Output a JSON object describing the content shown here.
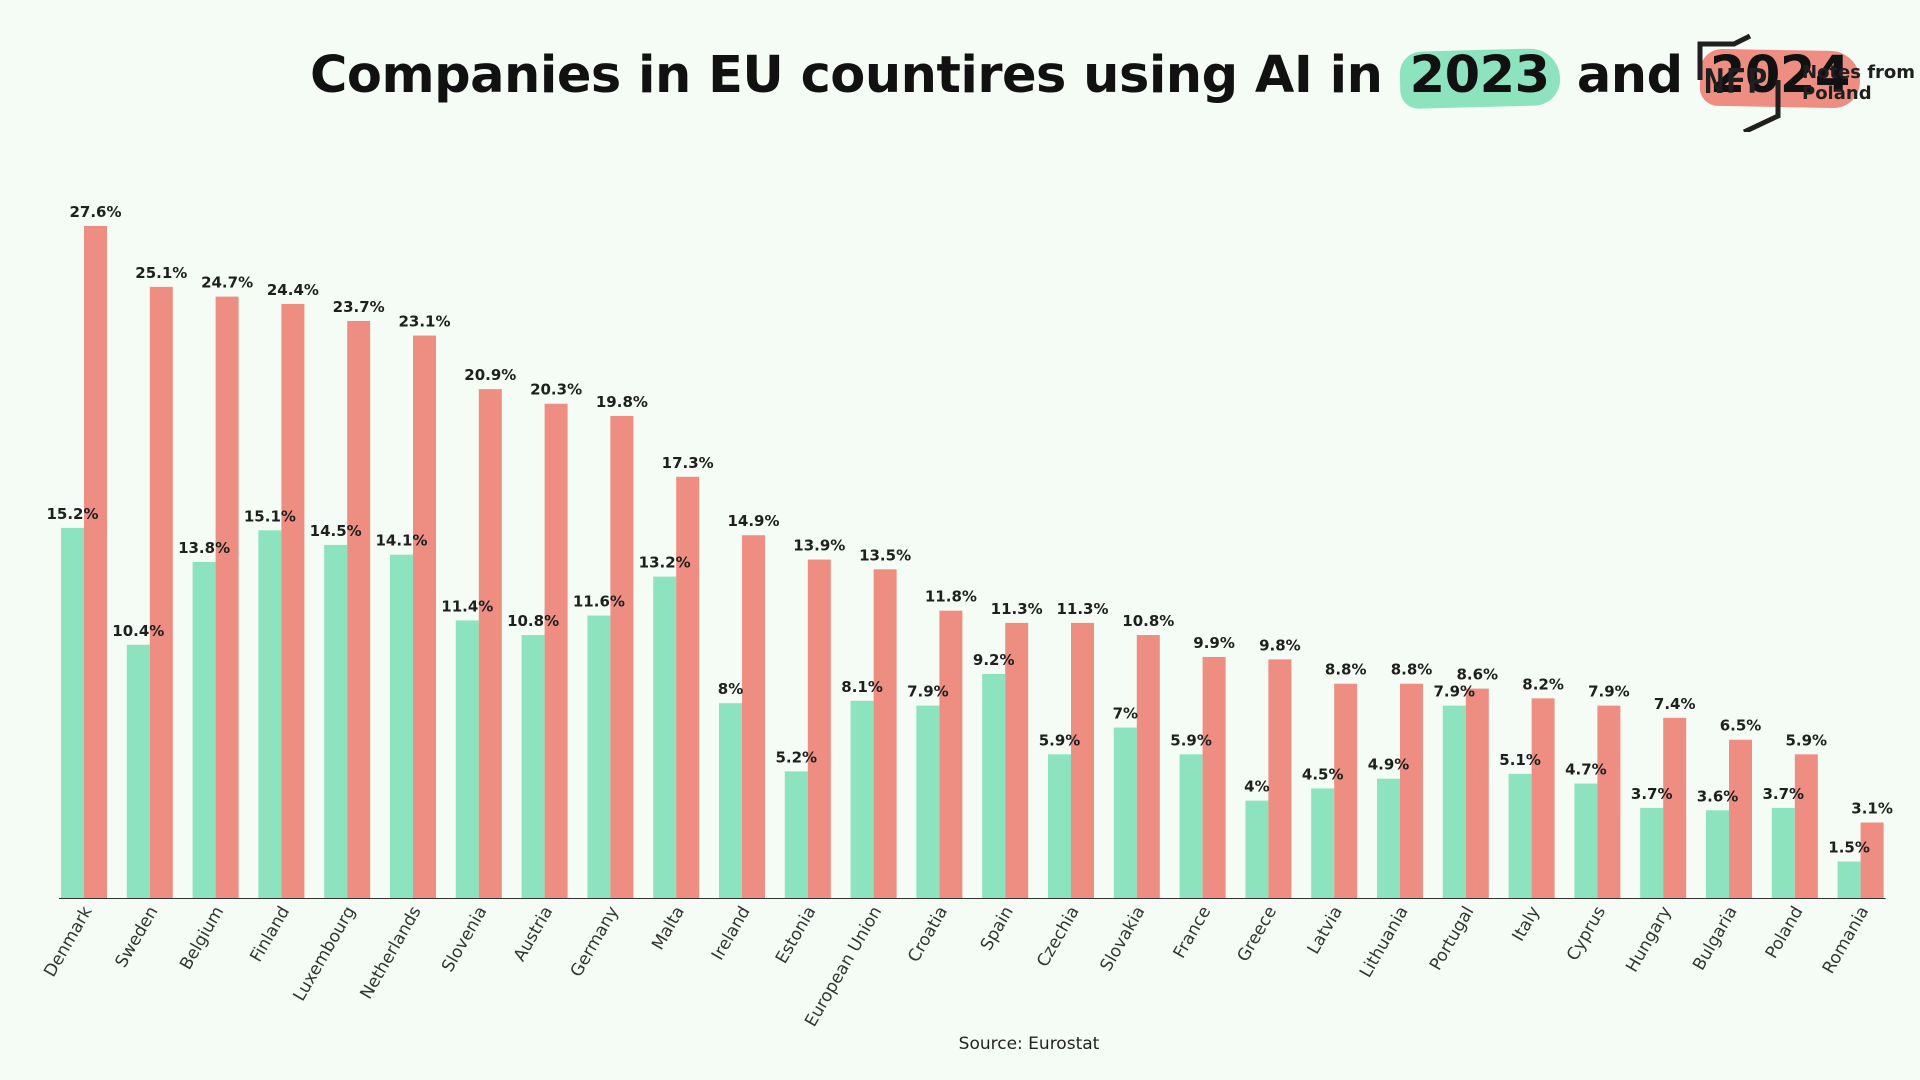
{
  "title": {
    "prefix": "Companies in EU countires using AI in",
    "year1": "2023",
    "middle": "and",
    "year2": "2024"
  },
  "logo": {
    "mark": "NFP",
    "text": "Notes from\nPoland"
  },
  "source": "Source: Eurostat",
  "colors": {
    "background": "#f4fcf5",
    "series_2023": "#8de3bd",
    "series_2024": "#ee8e82"
  },
  "chart_data": {
    "type": "bar",
    "title": "Companies in EU countires using AI in 2023 and 2024",
    "categories": [
      "Denmark",
      "Sweden",
      "Belgium",
      "Finland",
      "Luxembourg",
      "Netherlands",
      "Slovenia",
      "Austria",
      "Germany",
      "Malta",
      "Ireland",
      "Estonia",
      "European Union",
      "Croatia",
      "Spain",
      "Czechia",
      "Slovakia",
      "France",
      "Greece",
      "Latvia",
      "Lithuania",
      "Portugal",
      "Italy",
      "Cyprus",
      "Hungary",
      "Bulgaria",
      "Poland",
      "Romania"
    ],
    "series": [
      {
        "name": "2023",
        "color": "#8de3bd",
        "values": [
          15.2,
          10.4,
          13.8,
          15.1,
          14.5,
          14.1,
          11.4,
          10.8,
          11.6,
          13.2,
          8,
          5.2,
          8.1,
          7.9,
          9.2,
          5.9,
          7,
          5.9,
          4,
          4.5,
          4.9,
          7.9,
          5.1,
          4.7,
          3.7,
          3.6,
          3.7,
          1.5
        ]
      },
      {
        "name": "2024",
        "color": "#ee8e82",
        "values": [
          27.6,
          25.1,
          24.7,
          24.4,
          23.7,
          23.1,
          20.9,
          20.3,
          19.8,
          17.3,
          14.9,
          13.9,
          13.5,
          11.8,
          11.3,
          11.3,
          10.8,
          9.9,
          9.8,
          8.8,
          8.8,
          8.6,
          8.2,
          7.9,
          7.4,
          6.5,
          5.9,
          3.1
        ]
      }
    ],
    "value_suffix": "%",
    "ylim": [
      0,
      27.6
    ],
    "grid": false,
    "legend": "title"
  }
}
